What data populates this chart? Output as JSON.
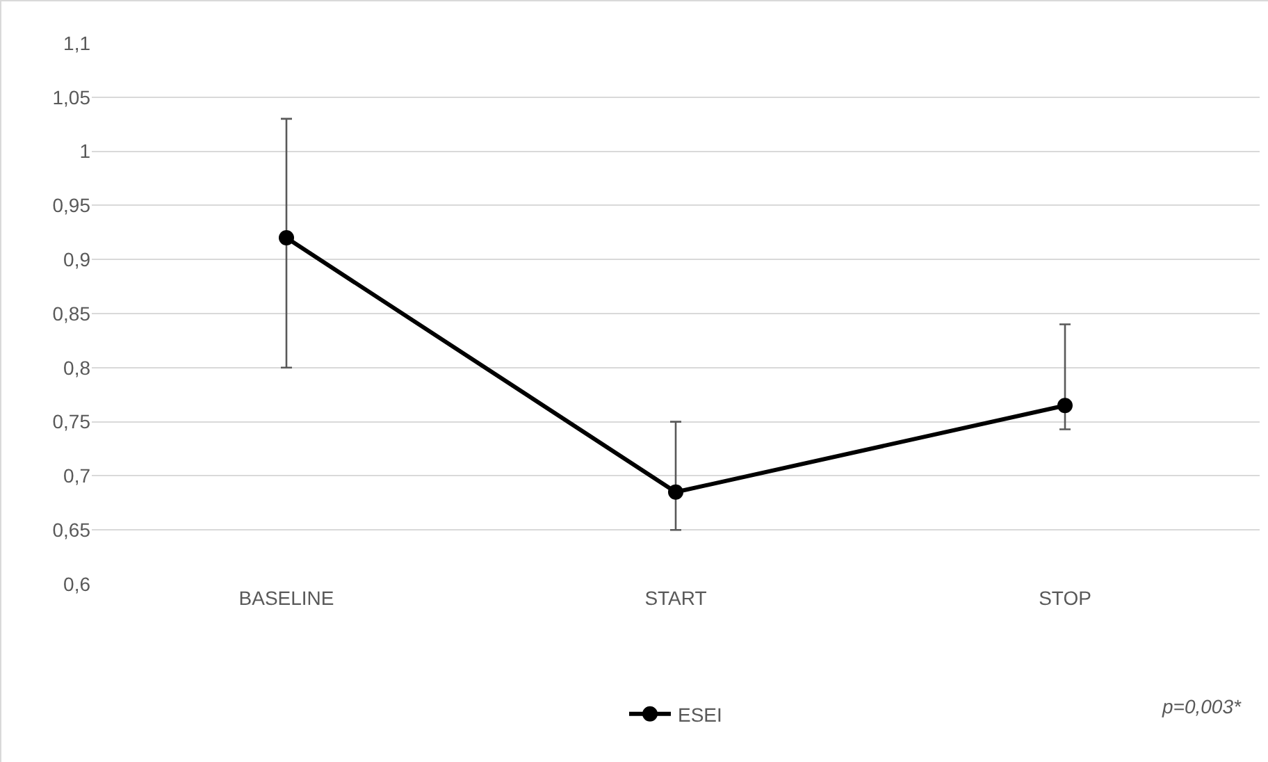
{
  "chart_data": {
    "type": "line",
    "categories": [
      "BASELINE",
      "START",
      "STOP"
    ],
    "series": [
      {
        "name": "ESEI",
        "color": "#000000",
        "values": [
          0.92,
          0.685,
          0.765
        ],
        "errors": [
          [
            0.8,
            1.03
          ],
          [
            0.65,
            0.75
          ],
          [
            0.743,
            0.84
          ]
        ]
      }
    ],
    "ylim": [
      0.6,
      1.1
    ],
    "yticks": [
      {
        "value": 0.6,
        "label": "0,6"
      },
      {
        "value": 0.65,
        "label": "0,65"
      },
      {
        "value": 0.7,
        "label": "0,7"
      },
      {
        "value": 0.75,
        "label": "0,75"
      },
      {
        "value": 0.8,
        "label": "0,8"
      },
      {
        "value": 0.85,
        "label": "0,85"
      },
      {
        "value": 0.9,
        "label": "0,9"
      },
      {
        "value": 0.95,
        "label": "0,95"
      },
      {
        "value": 1,
        "label": "1"
      },
      {
        "value": 1.05,
        "label": "1,05"
      },
      {
        "value": 1.1,
        "label": "1,1"
      }
    ],
    "grid": "y",
    "legend": "bottom",
    "marker": "circle",
    "line_style": "solid",
    "annotations": [
      "p=0,003*"
    ]
  }
}
